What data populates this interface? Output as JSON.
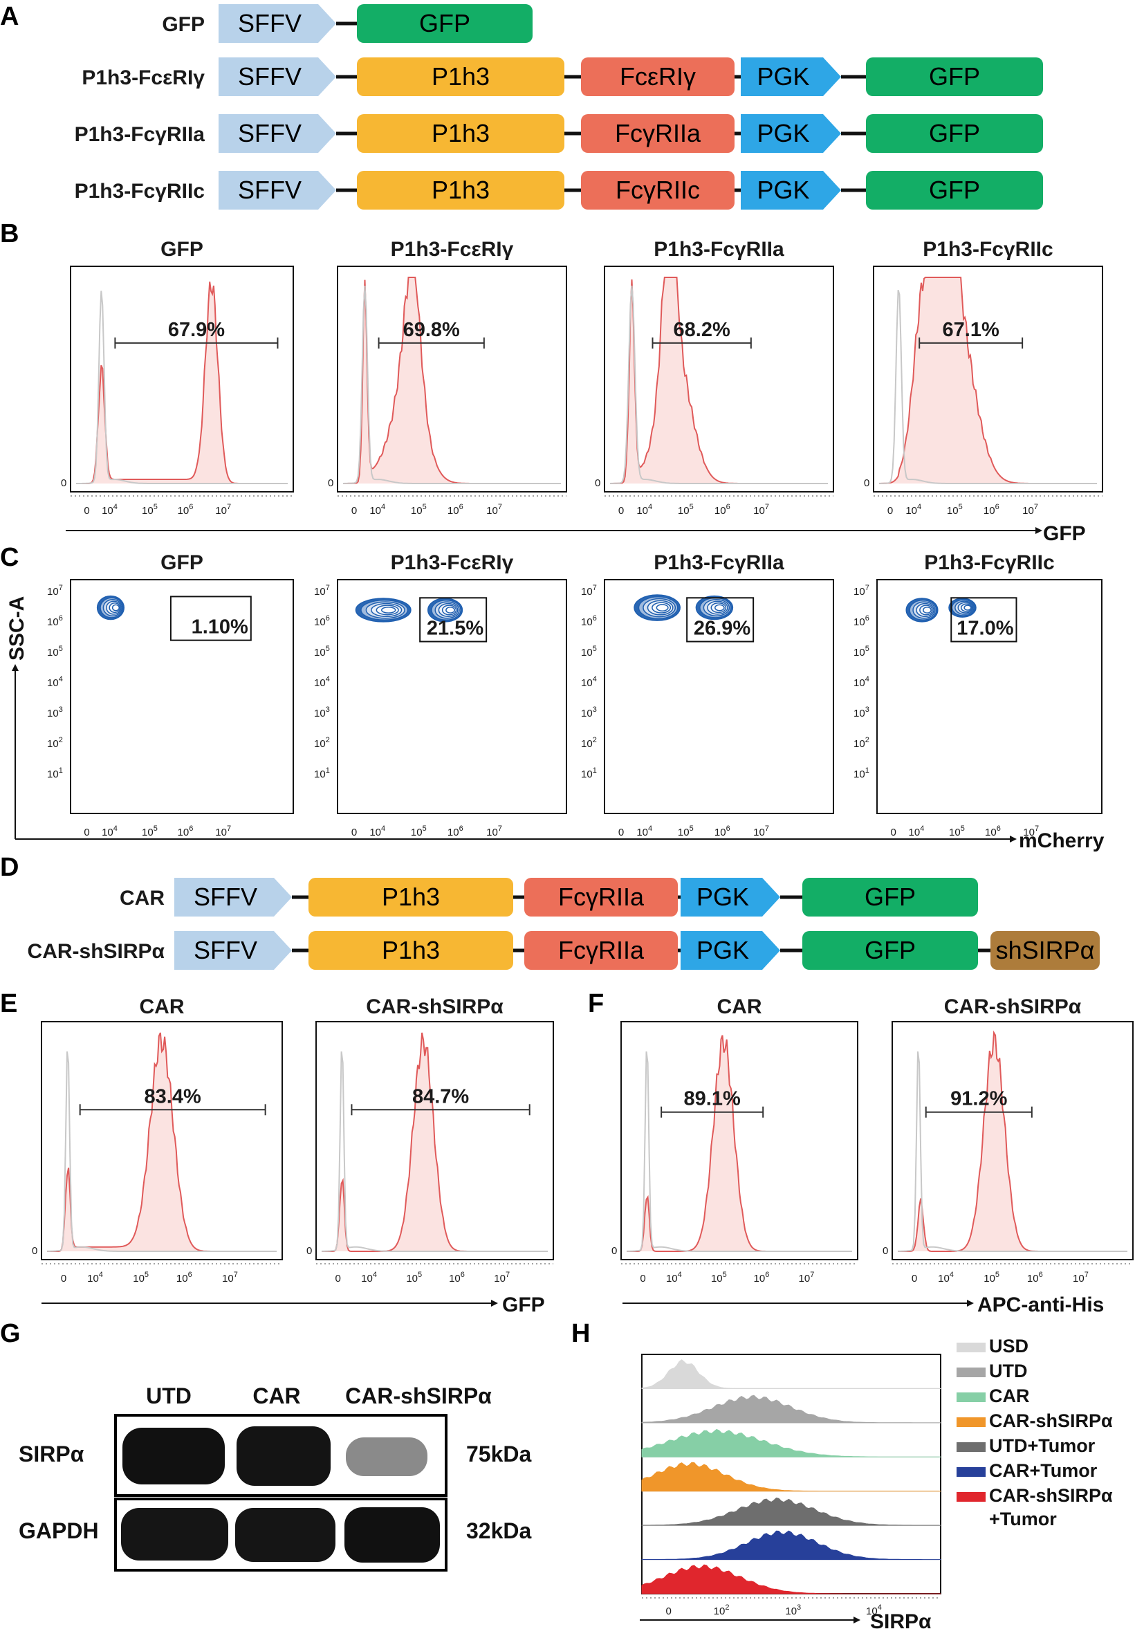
{
  "panels": {
    "A": {
      "label": "A",
      "constructs": [
        {
          "name": "GFP",
          "segments": [
            "SFFV",
            "GFP"
          ]
        },
        {
          "name": "P1h3-FcεRIγ",
          "segments": [
            "SFFV",
            "P1h3",
            "FcεRIγ",
            "PGK",
            "GFP"
          ]
        },
        {
          "name": "P1h3-FcγRIIa",
          "segments": [
            "SFFV",
            "P1h3",
            "FcγRIIa",
            "PGK",
            "GFP"
          ]
        },
        {
          "name": "P1h3-FcγRIIc",
          "segments": [
            "SFFV",
            "P1h3",
            "FcγRIIc",
            "PGK",
            "GFP"
          ]
        }
      ]
    },
    "B": {
      "label": "B",
      "axis_label": "GFP",
      "y_zero": "0",
      "x_ticks": [
        "0",
        "10",
        "10",
        "10",
        "10"
      ],
      "x_tick_exponents": [
        "",
        "4",
        "5",
        "6",
        "7"
      ],
      "plots": [
        {
          "title": "GFP",
          "percent": "67.9%"
        },
        {
          "title": "P1h3-FcεRIγ",
          "percent": "69.8%"
        },
        {
          "title": "P1h3-FcγRIIa",
          "percent": "68.2%"
        },
        {
          "title": "P1h3-FcγRIIc",
          "percent": "67.1%"
        }
      ]
    },
    "C": {
      "label": "C",
      "x_axis_label": "mCherry",
      "y_axis_label": "SSC-A",
      "y_ticks": [
        "10",
        "10",
        "10",
        "10",
        "10",
        "10",
        "10"
      ],
      "y_tick_exponents": [
        "7",
        "6",
        "5",
        "4",
        "3",
        "2",
        "1"
      ],
      "plots": [
        {
          "title": "GFP",
          "percent": "1.10%"
        },
        {
          "title": "P1h3-FcεRIγ",
          "percent": "21.5%"
        },
        {
          "title": "P1h3-FcγRIIa",
          "percent": "26.9%"
        },
        {
          "title": "P1h3-FcγRIIc",
          "percent": "17.0%"
        }
      ]
    },
    "D": {
      "label": "D",
      "constructs": [
        {
          "name": "CAR",
          "segments": [
            "SFFV",
            "P1h3",
            "FcγRIIa",
            "PGK",
            "GFP"
          ]
        },
        {
          "name": "CAR-shSIRPα",
          "segments": [
            "SFFV",
            "P1h3",
            "FcγRIIa",
            "PGK",
            "GFP",
            "shSIRPα"
          ]
        }
      ]
    },
    "E": {
      "label": "E",
      "axis_label": "GFP",
      "plots": [
        {
          "title": "CAR",
          "percent": "83.4%"
        },
        {
          "title": "CAR-shSIRPα",
          "percent": "84.7%"
        }
      ]
    },
    "F": {
      "label": "F",
      "axis_label": "APC-anti-His",
      "plots": [
        {
          "title": "CAR",
          "percent": "89.1%"
        },
        {
          "title": "CAR-shSIRPα",
          "percent": "91.2%"
        }
      ]
    },
    "G": {
      "label": "G",
      "lanes": [
        "UTD",
        "CAR",
        "CAR-shSIRPα"
      ],
      "rows": [
        {
          "protein": "SIRPα",
          "size": "75kDa"
        },
        {
          "protein": "GAPDH",
          "size": "32kDa"
        }
      ]
    },
    "H": {
      "label": "H",
      "axis_label": "SIRPα",
      "x_ticks": [
        "0",
        "10",
        "10",
        "10"
      ],
      "x_tick_exponents": [
        "",
        "2",
        "3",
        "4"
      ],
      "legend": [
        {
          "label": "USD",
          "color": "#d9d9d9"
        },
        {
          "label": "UTD",
          "color": "#a6a6a6"
        },
        {
          "label": "CAR",
          "color": "#86cfa6"
        },
        {
          "label": "CAR-shSIRPα",
          "color": "#f0962a"
        },
        {
          "label": "UTD+Tumor",
          "color": "#6e6e6e"
        },
        {
          "label": "CAR+Tumor",
          "color": "#27409a"
        },
        {
          "label": "CAR-shSIRPα",
          "label2": "+Tumor",
          "color": "#e0262d"
        }
      ]
    }
  },
  "colors": {
    "SFFV": "#b8d2ea",
    "P1h3": "#f7b733",
    "Fc": "#ec6f59",
    "PGK": "#2ea6e6",
    "GFP": "#13ae66",
    "shSIRPα": "#ad7c3b",
    "hist_line": "#e05a5a",
    "hist_fill": "#fbe3e1",
    "contour": "#1f5fb0"
  }
}
